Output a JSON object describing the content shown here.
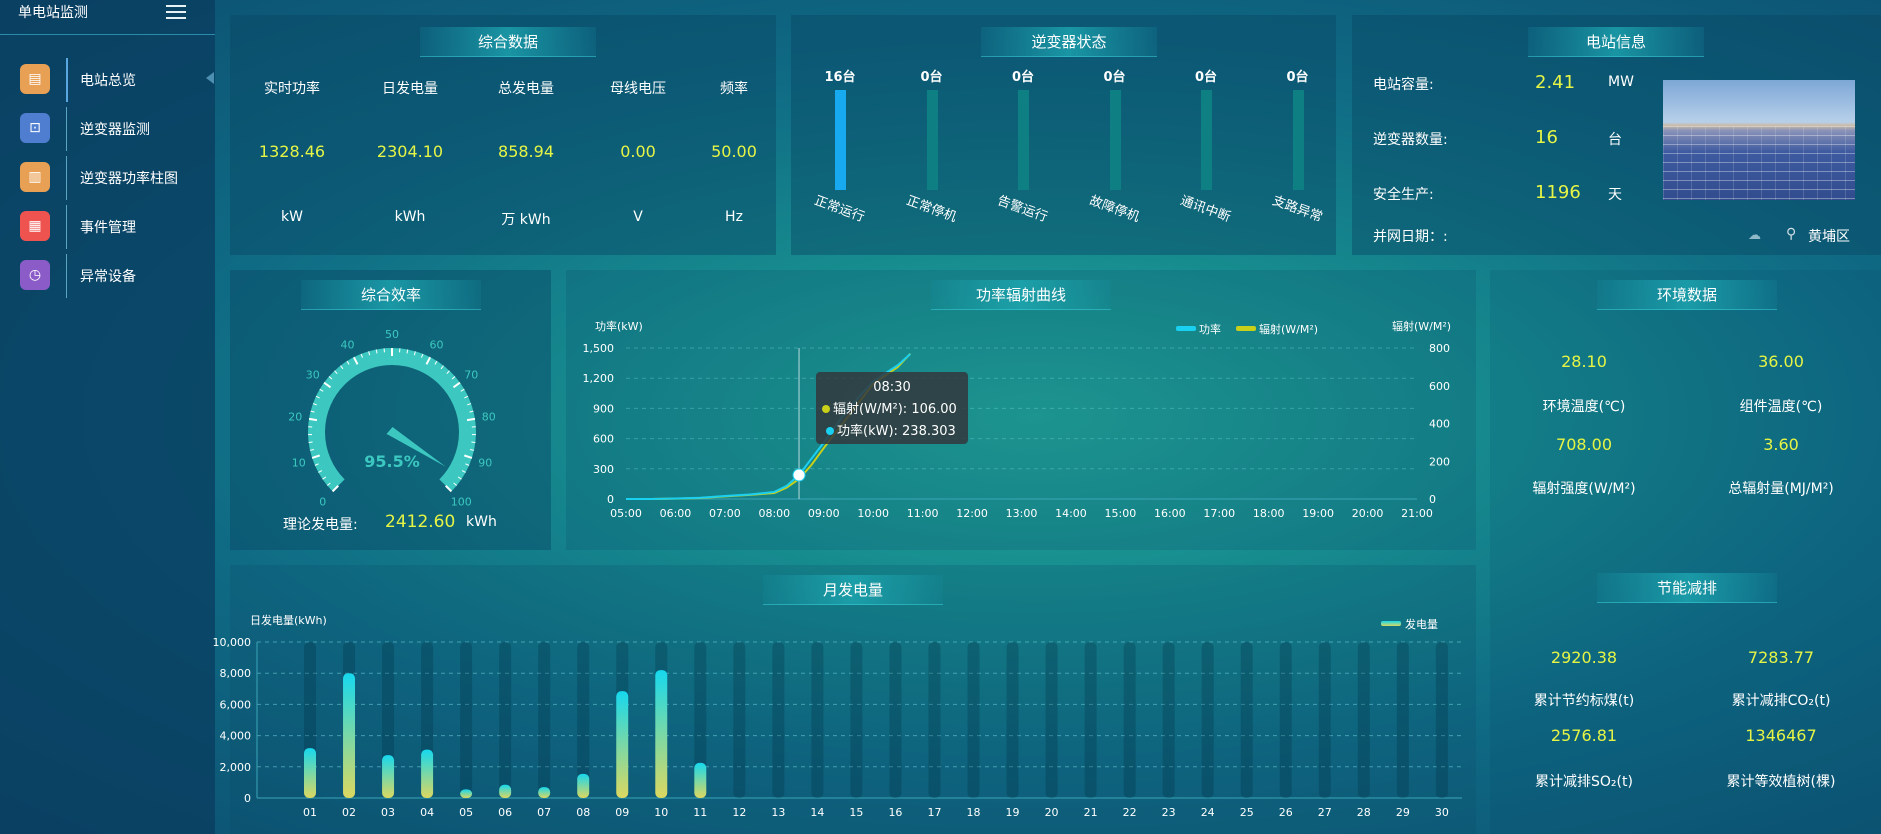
{
  "sidebar": {
    "title": "单电站监测",
    "items": [
      {
        "label": "电站总览",
        "icon": "overview-icon",
        "color": "#e8a055",
        "glyph": "▤"
      },
      {
        "label": "逆变器监测",
        "icon": "monitor-icon",
        "color": "#4f7ed0",
        "glyph": "⊡"
      },
      {
        "label": "逆变器功率柱图",
        "icon": "bar-chart-icon",
        "color": "#e8a055",
        "glyph": "▥"
      },
      {
        "label": "事件管理",
        "icon": "event-list-icon",
        "color": "#ef5350",
        "glyph": "▦"
      },
      {
        "label": "异常设备",
        "icon": "abnormal-device-icon",
        "color": "#8b5cc8",
        "glyph": "◷"
      }
    ],
    "active": 0
  },
  "summary": {
    "title": "综合数据",
    "columns": [
      {
        "label": "实时功率",
        "value": "1328.46",
        "unit": "kW"
      },
      {
        "label": "日发电量",
        "value": "2304.10",
        "unit": "kWh"
      },
      {
        "label": "总发电量",
        "value": "858.94",
        "unit": "万  kWh"
      },
      {
        "label": "母线电压",
        "value": "0.00",
        "unit": "V"
      },
      {
        "label": "频率",
        "value": "50.00",
        "unit": "Hz"
      }
    ]
  },
  "inverter_status": {
    "title": "逆变器状态",
    "total": 16,
    "items": [
      {
        "count": "16台",
        "label": "正常运行",
        "value": 16
      },
      {
        "count": "0台",
        "label": "正常停机",
        "value": 0
      },
      {
        "count": "0台",
        "label": "告警运行",
        "value": 0
      },
      {
        "count": "0台",
        "label": "故障停机",
        "value": 0
      },
      {
        "count": "0台",
        "label": "通讯中断",
        "value": 0
      },
      {
        "count": "0台",
        "label": "支路异常",
        "value": 0
      }
    ]
  },
  "station_info": {
    "title": "电站信息",
    "rows": [
      {
        "label": "电站容量:",
        "value": "2.41",
        "unit": "MW"
      },
      {
        "label": "逆变器数量:",
        "value": "16",
        "unit": "台"
      },
      {
        "label": "安全生产:",
        "value": "1196",
        "unit": "天"
      }
    ],
    "grid_date_label": "并网日期：:",
    "location": "黄埔区"
  },
  "efficiency": {
    "title": "综合效率",
    "value": 95.5,
    "value_text": "95.5%",
    "ticks": [
      "0",
      "10",
      "20",
      "30",
      "40",
      "50",
      "60",
      "70",
      "80",
      "90",
      "100"
    ],
    "theory_label": "理论发电量:",
    "theory_value": "2412.60",
    "theory_unit": "kWh",
    "color": "#3cc8c0"
  },
  "power_chart": {
    "title": "功率辐射曲线",
    "chart_data": {
      "type": "line",
      "x": [
        "05:00",
        "05:30",
        "06:00",
        "06:30",
        "07:00",
        "07:30",
        "08:00",
        "08:15",
        "08:30",
        "08:45",
        "09:00",
        "09:30",
        "10:00",
        "10:30",
        "10:45"
      ],
      "x_ticks": [
        "05:00",
        "06:00",
        "07:00",
        "08:00",
        "09:00",
        "10:00",
        "11:00",
        "12:00",
        "13:00",
        "14:00",
        "15:00",
        "16:00",
        "17:00",
        "18:00",
        "19:00",
        "20:00",
        "21:00"
      ],
      "xlim": [
        "05:00",
        "21:00"
      ],
      "ylabel_left": "功率(kW)",
      "ylim_left": [
        0,
        1500
      ],
      "yticks_left": [
        "0",
        "300",
        "600",
        "900",
        "1,200",
        "1,500"
      ],
      "ylabel_right": "辐射(W/M²)",
      "ylim_right": [
        0,
        800
      ],
      "yticks_right": [
        "0",
        "200",
        "400",
        "600",
        "800"
      ],
      "series": [
        {
          "name": "功率",
          "axis": "left",
          "color": "#1ad0f0",
          "values": [
            0,
            0,
            5,
            12,
            30,
            45,
            70,
            130,
            238.303,
            400,
            560,
            900,
            1170,
            1330,
            1440
          ]
        },
        {
          "name": "辐射(W/M²)",
          "axis": "right",
          "color": "#c8d01a",
          "values": [
            0,
            0,
            2,
            5,
            14,
            22,
            32,
            60,
            106,
            180,
            270,
            440,
            610,
            700,
            770
          ]
        }
      ],
      "legend": "top-right",
      "grid": true,
      "tooltip": {
        "time": "08:30",
        "line1": "辐射(W/M²): 106.00",
        "line2": "功率(kW): 238.303"
      }
    }
  },
  "environment": {
    "title": "环境数据",
    "items": [
      {
        "value": "28.10",
        "label": "环境温度(℃)"
      },
      {
        "value": "36.00",
        "label": "组件温度(℃)"
      },
      {
        "value": "708.00",
        "label": "辐射强度(W/M²)"
      },
      {
        "value": "3.60",
        "label": "总辐射量(MJ/M²)"
      }
    ]
  },
  "emission": {
    "title": "节能减排",
    "items": [
      {
        "value": "2920.38",
        "label": "累计节约标煤(t)"
      },
      {
        "value": "7283.77",
        "label": "累计减排CO₂(t)"
      },
      {
        "value": "2576.81",
        "label": "累计减排SO₂(t)"
      },
      {
        "value": "1346467",
        "label": "累计等效植树(棵)"
      }
    ]
  },
  "monthly_chart": {
    "title": "月发电量",
    "chart_data": {
      "type": "bar",
      "categories": [
        "01",
        "02",
        "03",
        "04",
        "05",
        "06",
        "07",
        "08",
        "09",
        "10",
        "11",
        "12",
        "13",
        "14",
        "15",
        "16",
        "17",
        "18",
        "19",
        "20",
        "21",
        "22",
        "23",
        "24",
        "25",
        "26",
        "27",
        "28",
        "29",
        "30"
      ],
      "series": [
        {
          "name": "发电量",
          "values": [
            3200,
            8000,
            2750,
            3100,
            550,
            850,
            700,
            1550,
            6850,
            8200,
            2250,
            0,
            0,
            0,
            0,
            0,
            0,
            0,
            0,
            0,
            0,
            0,
            0,
            0,
            0,
            0,
            0,
            0,
            0,
            0
          ]
        }
      ],
      "ylabel": "日发电量(kWh)",
      "ylim": [
        0,
        10000
      ],
      "yticks": [
        "0",
        "2,000",
        "4,000",
        "6,000",
        "8,000",
        "10,000"
      ],
      "legend": "top-right",
      "grid": true,
      "colors": [
        "#16d8ee",
        "#dcd860"
      ]
    }
  }
}
